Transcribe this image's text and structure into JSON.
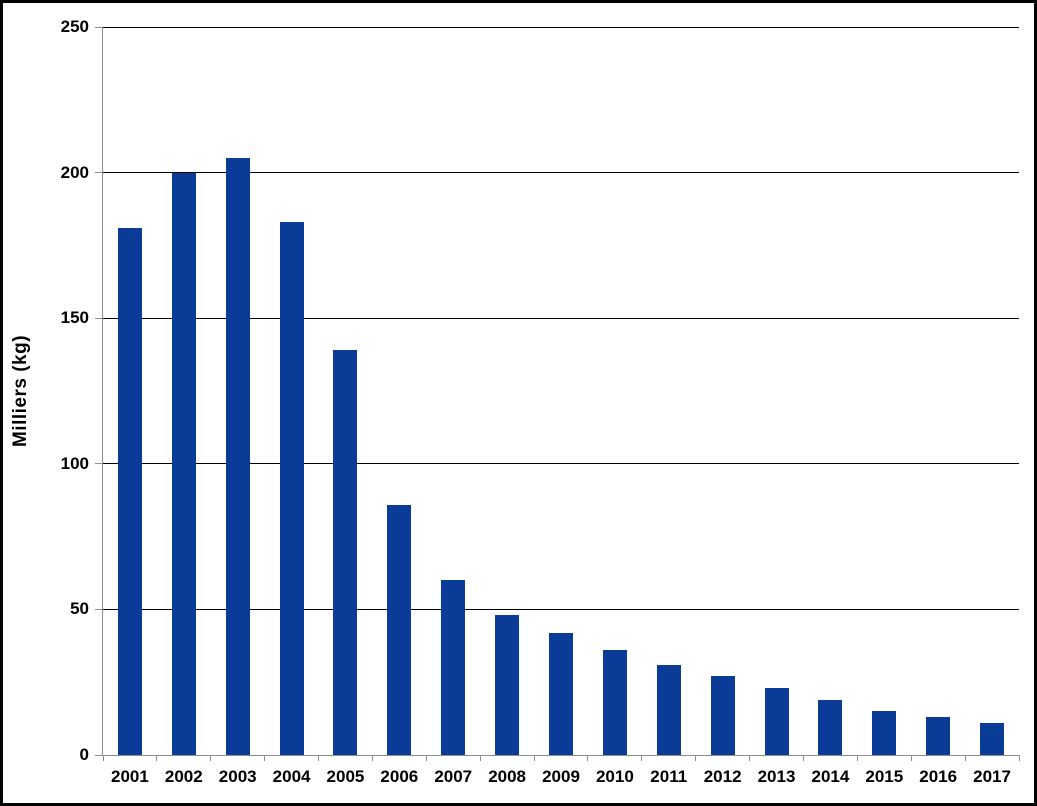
{
  "chart_data": {
    "type": "bar",
    "title": "",
    "categories": [
      "2001",
      "2002",
      "2003",
      "2004",
      "2005",
      "2006",
      "2007",
      "2008",
      "2009",
      "2010",
      "2011",
      "2012",
      "2013",
      "2014",
      "2015",
      "2016",
      "2017"
    ],
    "values": [
      181,
      200,
      205,
      183,
      139,
      86,
      60,
      48,
      42,
      36,
      31,
      27,
      23,
      19,
      15,
      13,
      11
    ],
    "series_name": "",
    "xlabel": "",
    "ylabel": "Milliers (kg)",
    "ylim": [
      0,
      250
    ],
    "yticks": [
      0,
      50,
      100,
      150,
      200,
      250
    ],
    "grid": "horizontal",
    "legend_position": "none",
    "bar_color": "#0A3B96",
    "gridline_color": "#000000",
    "axis_color": "#8E8E8E",
    "text_color": "#000000",
    "background_color": "#FFFFFF",
    "border_color": "#000000"
  }
}
